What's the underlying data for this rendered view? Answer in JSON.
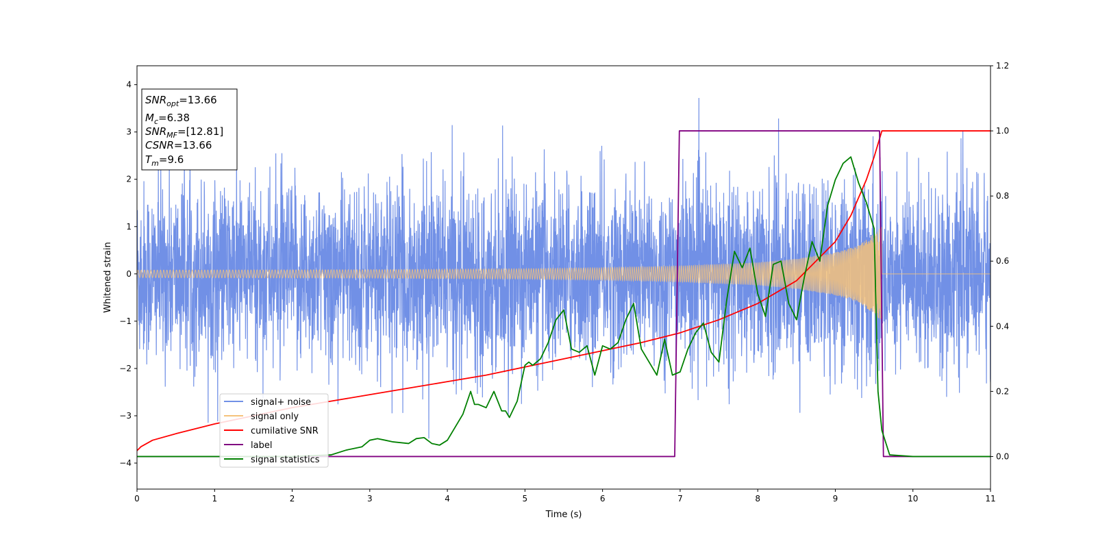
{
  "chart_data": {
    "type": "line",
    "xlabel": "Time (s)",
    "ylabel": "Whitened strain",
    "xlim": [
      0,
      11
    ],
    "ylim": [
      -4.55,
      4.4
    ],
    "y2lim": [
      -0.1,
      1.2
    ],
    "x_ticks": [
      "0",
      "1",
      "2",
      "3",
      "4",
      "5",
      "6",
      "7",
      "8",
      "9",
      "10",
      "11"
    ],
    "y_ticks": [
      "−4",
      "−3",
      "−2",
      "−1",
      "0",
      "1",
      "2",
      "3",
      "4"
    ],
    "y2_ticks": [
      "0.0",
      "0.2",
      "0.4",
      "0.6",
      "0.8",
      "1.0",
      "1.2"
    ],
    "grid": false,
    "legend_position": "lower-left",
    "annotation": {
      "lines": [
        {
          "var": "SNR",
          "sub": "opt",
          "value": "=13.66"
        },
        {
          "var": "M",
          "sub": "c",
          "value": "=6.38"
        },
        {
          "var": "SNR",
          "sub": "MF",
          "value": "=[12.81]"
        },
        {
          "var": "CSNR",
          "sub": "",
          "value": "=13.66"
        },
        {
          "var": "T",
          "sub": "m",
          "value": "=9.6"
        }
      ]
    },
    "series": [
      {
        "name": "signal+ noise",
        "axis": "left",
        "color": "#7190e6",
        "kind": "noise",
        "t_start": 0,
        "t_end": 11,
        "amplitude_std": 0.95
      },
      {
        "name": "signal only",
        "axis": "left",
        "color": "#f5c27a",
        "kind": "chirp",
        "t_start": 0,
        "t_merge": 9.6,
        "t_end": 11,
        "envelope": {
          "t": [
            0,
            3,
            5,
            6,
            7,
            8,
            8.5,
            9,
            9.3,
            9.5,
            9.6
          ],
          "amp": [
            0.08,
            0.09,
            0.11,
            0.13,
            0.17,
            0.24,
            0.32,
            0.45,
            0.6,
            0.85,
            1.0
          ]
        }
      },
      {
        "name": "cumilative SNR",
        "axis": "right",
        "color": "#ff0000",
        "x": [
          0,
          0.05,
          0.2,
          0.5,
          1,
          1.5,
          2,
          2.5,
          3,
          3.5,
          4,
          4.5,
          5,
          5.5,
          6,
          6.5,
          7,
          7.5,
          8,
          8.5,
          9,
          9.2,
          9.4,
          9.5,
          9.6,
          11
        ],
        "y": [
          0.018,
          0.03,
          0.05,
          0.07,
          0.1,
          0.125,
          0.15,
          0.17,
          0.19,
          0.21,
          0.23,
          0.25,
          0.275,
          0.3,
          0.325,
          0.35,
          0.38,
          0.42,
          0.47,
          0.54,
          0.66,
          0.74,
          0.85,
          0.92,
          1.0,
          1.0
        ]
      },
      {
        "name": "label",
        "axis": "right",
        "color": "#800080",
        "x": [
          0,
          6.93,
          6.99,
          9.57,
          9.62,
          11
        ],
        "y": [
          0,
          0,
          1.0,
          1.0,
          0,
          0
        ]
      },
      {
        "name": "signal statistics",
        "axis": "right",
        "color": "#008000",
        "x": [
          0,
          0.5,
          1,
          1.5,
          2,
          2.5,
          2.7,
          2.8,
          2.9,
          3.0,
          3.1,
          3.2,
          3.3,
          3.5,
          3.6,
          3.7,
          3.8,
          3.9,
          4.0,
          4.1,
          4.2,
          4.3,
          4.35,
          4.4,
          4.5,
          4.6,
          4.7,
          4.75,
          4.8,
          4.9,
          5.0,
          5.05,
          5.1,
          5.2,
          5.3,
          5.4,
          5.5,
          5.6,
          5.7,
          5.8,
          5.9,
          6.0,
          6.1,
          6.2,
          6.3,
          6.4,
          6.5,
          6.6,
          6.7,
          6.8,
          6.9,
          7.0,
          7.1,
          7.2,
          7.3,
          7.4,
          7.5,
          7.6,
          7.7,
          7.8,
          7.9,
          8.0,
          8.1,
          8.2,
          8.3,
          8.4,
          8.5,
          8.6,
          8.7,
          8.8,
          8.9,
          9.0,
          9.1,
          9.2,
          9.3,
          9.4,
          9.5,
          9.55,
          9.6,
          9.7,
          10,
          11
        ],
        "y": [
          0.0,
          0.0,
          0.0,
          0.0,
          0.0,
          0.005,
          0.02,
          0.025,
          0.03,
          0.05,
          0.055,
          0.05,
          0.045,
          0.04,
          0.055,
          0.058,
          0.04,
          0.035,
          0.05,
          0.09,
          0.13,
          0.2,
          0.16,
          0.16,
          0.15,
          0.2,
          0.14,
          0.14,
          0.12,
          0.17,
          0.28,
          0.29,
          0.28,
          0.3,
          0.35,
          0.42,
          0.45,
          0.33,
          0.32,
          0.34,
          0.25,
          0.34,
          0.33,
          0.35,
          0.42,
          0.47,
          0.33,
          0.29,
          0.25,
          0.36,
          0.25,
          0.26,
          0.33,
          0.38,
          0.41,
          0.32,
          0.29,
          0.48,
          0.63,
          0.58,
          0.64,
          0.5,
          0.43,
          0.59,
          0.6,
          0.47,
          0.42,
          0.55,
          0.66,
          0.6,
          0.77,
          0.85,
          0.9,
          0.92,
          0.84,
          0.78,
          0.7,
          0.2,
          0.08,
          0.005,
          0.0,
          0.0
        ]
      }
    ]
  }
}
